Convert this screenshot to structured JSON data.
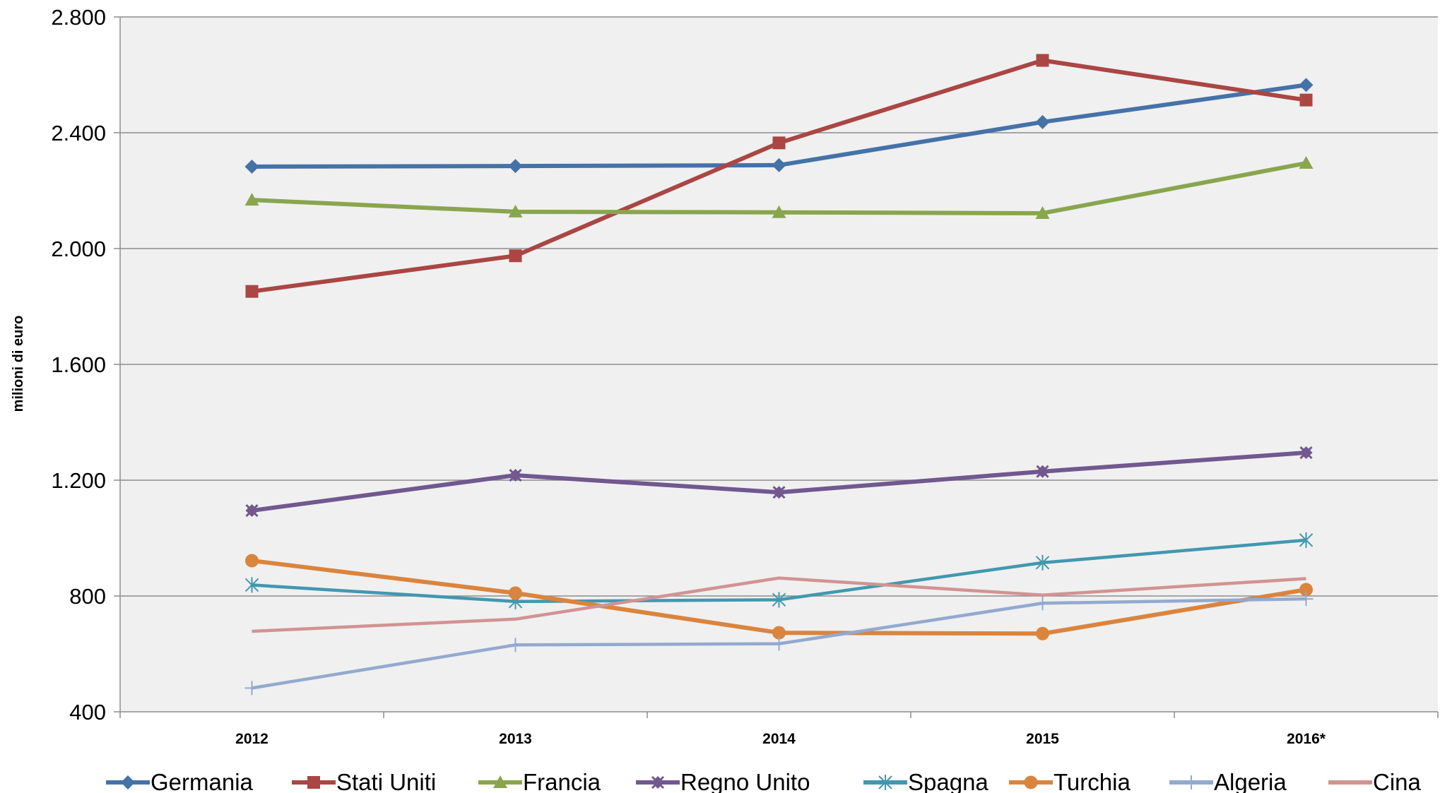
{
  "chart_data": {
    "type": "line",
    "title": "",
    "xlabel": "",
    "ylabel": "milioni di euro",
    "categories": [
      "2012",
      "2013",
      "2014",
      "2015",
      "2016*"
    ],
    "ylim": [
      400,
      2800
    ],
    "yticks": [
      400,
      800,
      1200,
      1600,
      2000,
      2400,
      2800
    ],
    "ytick_labels": [
      "400",
      "800",
      "1.200",
      "1.600",
      "2.000",
      "2.400",
      "2.800"
    ],
    "grid": "horizontal",
    "legend_position": "bottom",
    "series": [
      {
        "name": "Germania",
        "color": "#4572A7",
        "marker": "diamond",
        "values": [
          2283,
          2285,
          2288,
          2437,
          2565
        ]
      },
      {
        "name": "Stati Uniti",
        "color": "#AA4643",
        "marker": "square",
        "values": [
          1852,
          1975,
          2365,
          2650,
          2513
        ]
      },
      {
        "name": "Francia",
        "color": "#89A54E",
        "marker": "triangle",
        "values": [
          2168,
          2127,
          2125,
          2122,
          2295
        ]
      },
      {
        "name": "Regno Unito",
        "color": "#71588F",
        "marker": "x-diamond",
        "values": [
          1095,
          1217,
          1158,
          1230,
          1295
        ]
      },
      {
        "name": "Spagna",
        "color": "#4198AF",
        "marker": "star",
        "values": [
          838,
          781,
          787,
          915,
          993
        ]
      },
      {
        "name": "Turchia",
        "color": "#DB843D",
        "marker": "circle",
        "values": [
          922,
          810,
          673,
          670,
          822
        ]
      },
      {
        "name": "Algeria",
        "color": "#93A9CF",
        "marker": "plus",
        "values": [
          482,
          631,
          635,
          775,
          790
        ]
      },
      {
        "name": "Cina",
        "color": "#D19392",
        "marker": "none",
        "values": [
          678,
          720,
          862,
          803,
          860
        ]
      }
    ]
  }
}
